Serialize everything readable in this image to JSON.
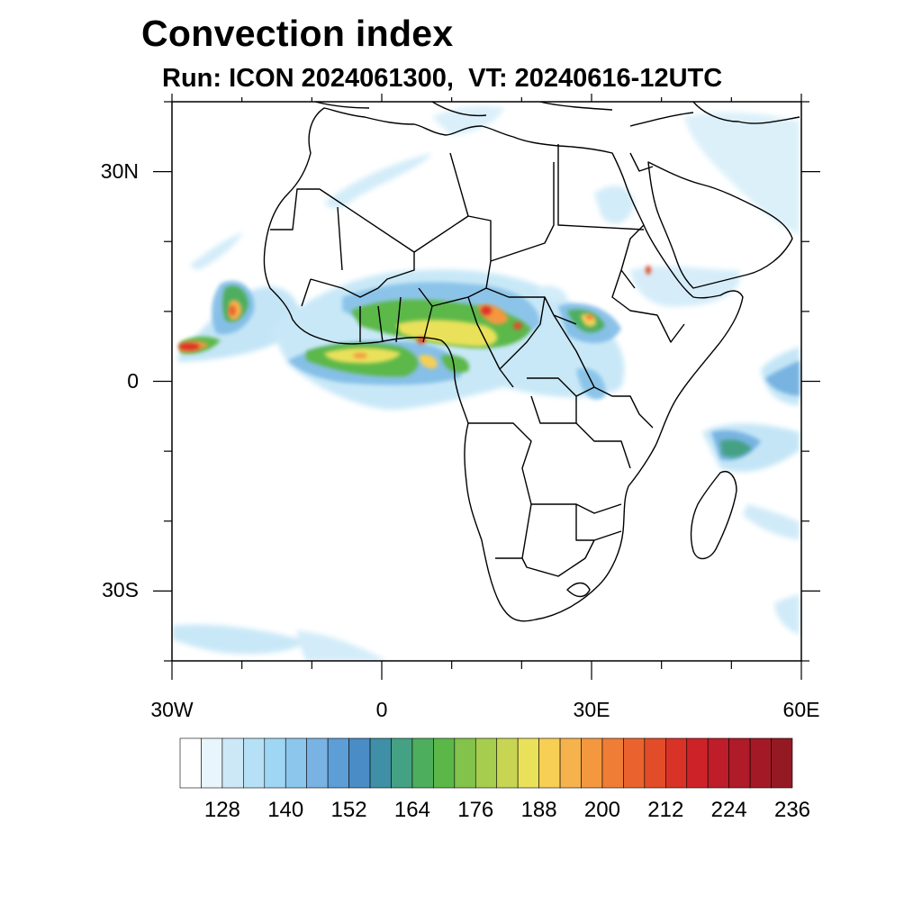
{
  "title": "Convection index",
  "subtitle": "Run: ICON 2024061300,  VT: 20240616-12UTC",
  "map": {
    "projection": "cylindrical equidistant",
    "lon_range": [
      -30,
      60
    ],
    "lat_range": [
      -40,
      40
    ],
    "lon_ticks": [
      {
        "value": -30,
        "label": "30W"
      },
      {
        "value": 0,
        "label": "0"
      },
      {
        "value": 30,
        "label": "30E"
      },
      {
        "value": 60,
        "label": "60E"
      }
    ],
    "lat_ticks": [
      {
        "value": 30,
        "label": "30N"
      },
      {
        "value": 0,
        "label": "0"
      },
      {
        "value": -30,
        "label": "30S"
      }
    ]
  },
  "colorbar": {
    "levels": [
      116,
      120,
      124,
      128,
      132,
      136,
      140,
      144,
      148,
      152,
      156,
      160,
      164,
      168,
      172,
      176,
      180,
      184,
      188,
      192,
      196,
      200,
      204,
      208,
      212,
      216,
      220,
      224,
      228,
      232,
      236,
      240
    ],
    "labels": [
      "128",
      "140",
      "152",
      "164",
      "176",
      "188",
      "200",
      "212",
      "224",
      "236"
    ],
    "colors": [
      "#ffffff",
      "#e8f5fc",
      "#cce8f7",
      "#b6e0f5",
      "#9fd6f3",
      "#8dc6ec",
      "#79b3e3",
      "#5d9ed6",
      "#4a8cc6",
      "#3f8fa6",
      "#45a183",
      "#4dae5e",
      "#5bb848",
      "#83c24b",
      "#a7cd4e",
      "#c8d553",
      "#eae15a",
      "#f7cf55",
      "#f6b24c",
      "#f49840",
      "#ef7d36",
      "#ea632e",
      "#e24c29",
      "#d93227",
      "#cd2328",
      "#bf1d2a",
      "#b01b29",
      "#a31a26",
      "#951923"
    ]
  }
}
